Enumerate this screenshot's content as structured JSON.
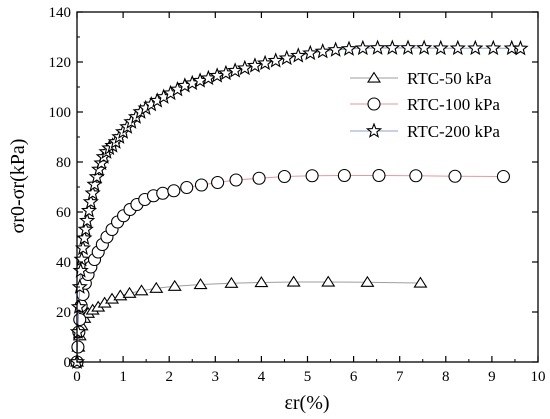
{
  "chart_data": {
    "type": "line",
    "xlabel": "εr(%)",
    "ylabel": "σr0-σr(kPa)",
    "xlim": [
      0,
      10
    ],
    "ylim": [
      0,
      140
    ],
    "xticks": [
      "0",
      "1",
      "2",
      "3",
      "4",
      "5",
      "6",
      "7",
      "8",
      "9",
      "10"
    ],
    "yticks": [
      "0",
      "20",
      "40",
      "60",
      "80",
      "100",
      "120",
      "140"
    ],
    "legend_position": "right",
    "grid": false,
    "series": [
      {
        "name": "RTC-50 kPa",
        "marker": "triangle",
        "line_color": "#9e9e9e",
        "x": [
          0.0,
          0.03,
          0.06,
          0.1,
          0.16,
          0.24,
          0.34,
          0.46,
          0.6,
          0.76,
          0.94,
          1.14,
          1.4,
          1.72,
          2.12,
          2.68,
          3.35,
          4.0,
          4.7,
          5.45,
          6.3,
          7.45
        ],
        "y": [
          0.0,
          6.0,
          10.5,
          14.5,
          17.5,
          19.5,
          20.8,
          22.0,
          23.6,
          25.2,
          26.5,
          27.5,
          28.5,
          29.5,
          30.3,
          31.0,
          31.5,
          31.8,
          32.0,
          32.0,
          31.9,
          31.6
        ]
      },
      {
        "name": "RTC-100 kPa",
        "marker": "circle",
        "line_color": "#e69a9a",
        "x": [
          0.0,
          0.02,
          0.04,
          0.06,
          0.09,
          0.13,
          0.18,
          0.24,
          0.3,
          0.38,
          0.46,
          0.55,
          0.65,
          0.76,
          0.88,
          1.01,
          1.15,
          1.3,
          1.47,
          1.66,
          1.86,
          2.1,
          2.38,
          2.7,
          3.05,
          3.45,
          3.95,
          4.5,
          5.1,
          5.8,
          6.55,
          7.35,
          8.2,
          9.25
        ],
        "y": [
          0.0,
          6.0,
          12.0,
          17.0,
          22.5,
          27.0,
          31.5,
          35.0,
          38.0,
          41.0,
          44.0,
          47.0,
          50.0,
          53.0,
          56.0,
          58.5,
          61.0,
          63.0,
          65.0,
          66.5,
          67.5,
          68.5,
          69.8,
          70.8,
          71.8,
          72.8,
          73.5,
          74.2,
          74.5,
          74.6,
          74.6,
          74.5,
          74.3,
          74.2
        ]
      },
      {
        "name": "RTC-200 kPa",
        "marker": "star",
        "line_color": "#8fa0c8",
        "x": [
          0.0,
          0.02,
          0.04,
          0.06,
          0.08,
          0.1,
          0.13,
          0.16,
          0.19,
          0.22,
          0.26,
          0.3,
          0.34,
          0.38,
          0.43,
          0.48,
          0.53,
          0.58,
          0.64,
          0.7,
          0.77,
          0.84,
          0.92,
          1.0,
          1.09,
          1.18,
          1.28,
          1.38,
          1.49,
          1.61,
          1.74,
          1.88,
          2.03,
          2.18,
          2.34,
          2.5,
          2.67,
          2.85,
          3.04,
          3.23,
          3.43,
          3.64,
          3.86,
          4.08,
          4.31,
          4.55,
          4.8,
          5.06,
          5.33,
          5.61,
          5.9,
          6.2,
          6.52,
          6.84,
          7.18,
          7.53,
          7.89,
          8.26,
          8.64,
          9.03,
          9.43,
          9.62
        ],
        "y": [
          0.0,
          12.0,
          22.0,
          30.0,
          36.5,
          41.0,
          45.5,
          49.5,
          53.0,
          56.5,
          60.5,
          64.0,
          67.5,
          71.0,
          74.0,
          77.0,
          79.5,
          82.0,
          84.0,
          85.5,
          86.5,
          88.0,
          90.0,
          92.0,
          94.0,
          96.0,
          98.0,
          100.0,
          101.5,
          103.0,
          104.5,
          106.0,
          107.5,
          109.0,
          110.5,
          111.5,
          112.5,
          113.5,
          114.5,
          115.5,
          116.5,
          117.5,
          118.5,
          119.5,
          120.5,
          121.5,
          122.5,
          123.5,
          124.2,
          124.8,
          125.2,
          125.5,
          125.6,
          125.6,
          125.6,
          125.6,
          125.5,
          125.5,
          125.5,
          125.5,
          125.5,
          125.4
        ]
      }
    ]
  }
}
